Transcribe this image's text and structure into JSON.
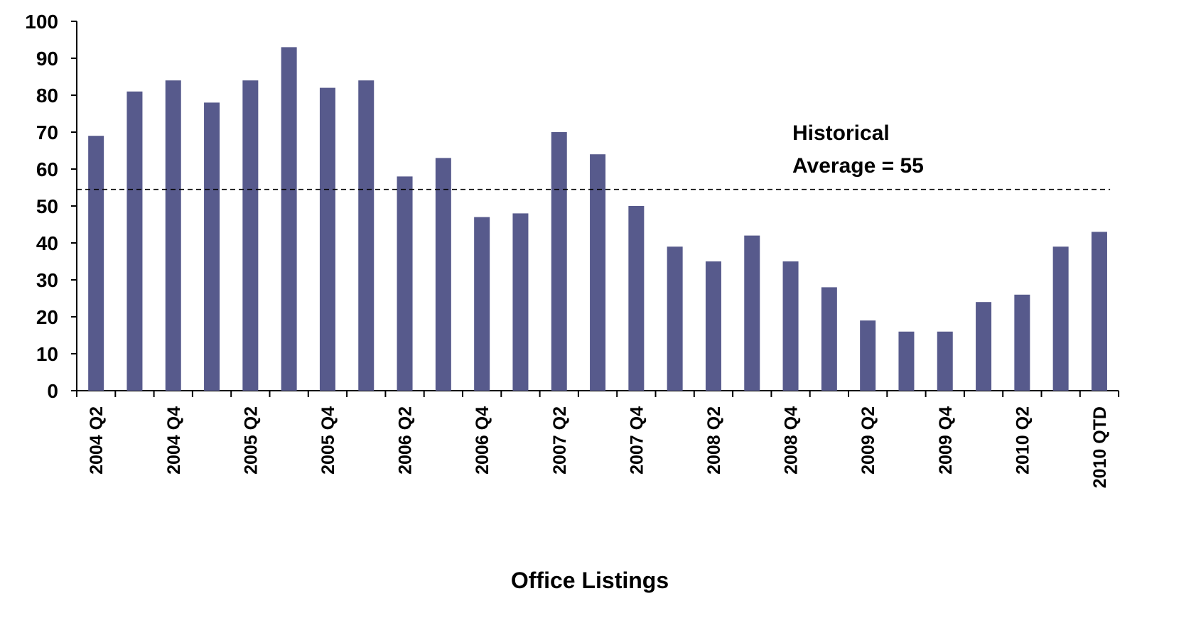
{
  "chart_data": {
    "type": "bar",
    "x_label": "Office Listings",
    "categories": [
      "2004 Q2",
      null,
      "2004 Q4",
      null,
      "2005 Q2",
      null,
      "2005 Q4",
      null,
      "2006 Q2",
      null,
      "2006 Q4",
      null,
      "2007 Q2",
      null,
      "2007 Q4",
      null,
      "2008 Q2",
      null,
      "2008 Q4",
      null,
      "2009 Q2",
      null,
      "2009 Q4",
      null,
      "2010 Q2",
      null,
      "2010 QTD"
    ],
    "values": [
      69,
      81,
      84,
      78,
      84,
      93,
      82,
      84,
      58,
      63,
      47,
      48,
      70,
      64,
      50,
      39,
      35,
      42,
      35,
      28,
      19,
      16,
      16,
      24,
      26,
      39,
      43
    ],
    "color": "#575a8c",
    "ylim": [
      0,
      100
    ],
    "yticks": [
      0,
      10,
      20,
      30,
      40,
      50,
      60,
      70,
      80,
      90,
      100
    ],
    "reference_line": {
      "value": 54.5,
      "style": "dashed"
    },
    "annotation": [
      "Historical",
      "Average = 55"
    ]
  }
}
